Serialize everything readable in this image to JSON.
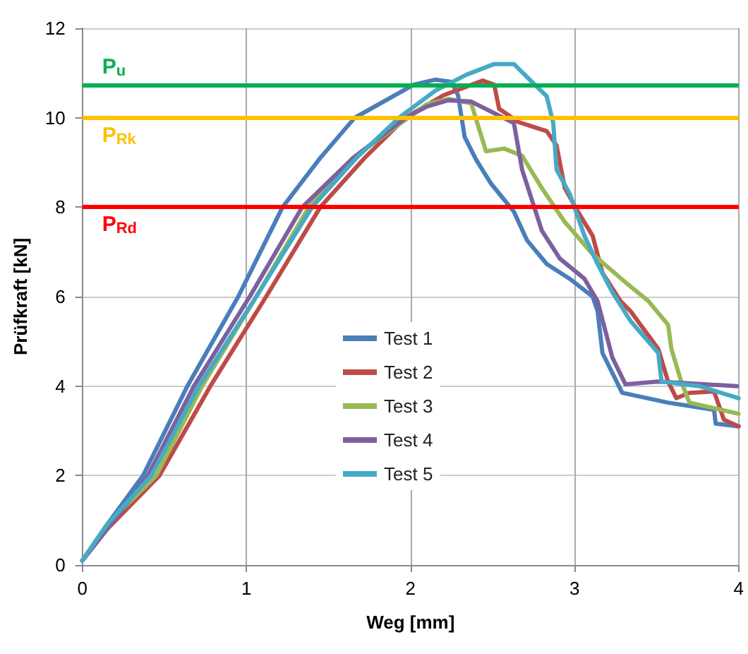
{
  "chart_data": {
    "type": "line",
    "xlabel": "Weg [mm]",
    "ylabel": "Prüfkraft [kN]",
    "xlim": [
      0,
      4
    ],
    "xticks": [
      0,
      1,
      2,
      3,
      4
    ],
    "ylim": [
      0,
      12
    ],
    "yticks": [
      0,
      2,
      4,
      6,
      8,
      10,
      12
    ],
    "grid": true,
    "legend": "center",
    "marker": "none",
    "line_style": "solid",
    "ref_lines": [
      {
        "axis": "y",
        "value": 10.74,
        "label": "P$_{u}$",
        "color": "#00b050"
      },
      {
        "axis": "y",
        "value": 10.0,
        "label": "P$_{Rk}$",
        "color": "#ffc000"
      },
      {
        "axis": "y",
        "value": 8.0,
        "label": "P$_{Rd}$",
        "color": "#ff0000"
      }
    ],
    "series": [
      {
        "name": "Test 1",
        "color": "#4a7ebb",
        "x": [
          0,
          0.15,
          0.37,
          0.64,
          0.95,
          1.22,
          1.45,
          1.66,
          2.02,
          2.15,
          2.25,
          2.29,
          2.33,
          2.4,
          2.49,
          2.63,
          2.71,
          2.83,
          2.97,
          3.11,
          3.14,
          3.17,
          3.29,
          3.57,
          3.85,
          3.86,
          4.0
        ],
        "values": [
          0.1,
          0.9,
          2,
          4,
          6,
          8,
          9.1,
          10,
          10.74,
          10.85,
          10.8,
          10.5,
          9.57,
          9.06,
          8.53,
          7.9,
          7.26,
          6.73,
          6.4,
          6.0,
          5.68,
          4.74,
          3.85,
          3.63,
          3.47,
          3.16,
          3.1
        ]
      },
      {
        "name": "Test 2",
        "color": "#be4b48",
        "x": [
          0,
          0.15,
          0.47,
          0.78,
          1.12,
          1.45,
          1.72,
          1.97,
          2.2,
          2.44,
          2.51,
          2.54,
          2.66,
          2.83,
          2.89,
          2.94,
          3.02,
          3.11,
          3.17,
          3.28,
          3.34,
          3.51,
          3.57,
          3.62,
          3.7,
          3.85,
          3.91,
          4.0
        ],
        "values": [
          0.1,
          0.8,
          2,
          4,
          6,
          8,
          9.1,
          10,
          10.5,
          10.83,
          10.74,
          10.2,
          9.9,
          9.7,
          9.38,
          8.43,
          7.9,
          7.36,
          6.53,
          5.9,
          5.68,
          4.83,
          4.1,
          3.73,
          3.85,
          3.88,
          3.25,
          3.1
        ]
      },
      {
        "name": "Test 3",
        "color": "#98b954",
        "x": [
          0,
          0.15,
          0.45,
          0.73,
          1.06,
          1.38,
          1.65,
          2.1,
          2.23,
          2.37,
          2.46,
          2.57,
          2.68,
          2.8,
          2.94,
          3.11,
          3.31,
          3.45,
          3.57,
          3.59,
          3.65,
          3.7,
          4.0
        ],
        "values": [
          0.1,
          0.9,
          2,
          4,
          6,
          8,
          9.1,
          10.3,
          10.42,
          10.32,
          9.25,
          9.31,
          9.15,
          8.43,
          7.67,
          6.95,
          6.32,
          5.9,
          5.37,
          4.83,
          4.1,
          3.63,
          3.38
        ]
      },
      {
        "name": "Test 4",
        "color": "#7d60a0",
        "x": [
          0,
          0.15,
          0.4,
          0.68,
          1.02,
          1.34,
          1.65,
          1.97,
          2.1,
          2.23,
          2.37,
          2.63,
          2.68,
          2.8,
          2.91,
          3.06,
          3.14,
          3.23,
          3.31,
          3.51,
          3.99
        ],
        "values": [
          0.1,
          0.8,
          2,
          4,
          6,
          8,
          9.1,
          10,
          10.25,
          10.39,
          10.36,
          9.88,
          8.84,
          7.48,
          6.85,
          6.4,
          5.9,
          4.64,
          4.04,
          4.1,
          4.0
        ]
      },
      {
        "name": "Test 5",
        "color": "#46aac5",
        "x": [
          0,
          0.15,
          0.42,
          0.71,
          1.06,
          1.4,
          1.67,
          1.93,
          2.15,
          2.34,
          2.51,
          2.63,
          2.74,
          2.83,
          2.87,
          2.89,
          2.97,
          3.06,
          3.14,
          3.23,
          3.34,
          3.51,
          3.53,
          3.76,
          4.0
        ],
        "values": [
          0.1,
          0.9,
          2,
          4,
          6,
          8,
          9.1,
          10,
          10.6,
          10.96,
          11.2,
          11.2,
          10.8,
          10.48,
          9.88,
          8.84,
          8.3,
          7.36,
          6.73,
          6.1,
          5.46,
          4.74,
          4.1,
          4.0,
          3.73
        ]
      }
    ]
  }
}
